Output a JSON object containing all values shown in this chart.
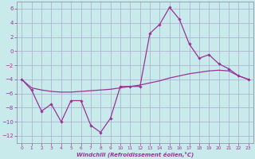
{
  "background_color": "#c8eaea",
  "grid_color": "#aaaacc",
  "line_color": "#993399",
  "x_hours": [
    0,
    1,
    2,
    3,
    4,
    5,
    6,
    7,
    8,
    9,
    10,
    11,
    12,
    13,
    14,
    15,
    16,
    17,
    18,
    19,
    20,
    21,
    22,
    23
  ],
  "y_jagged": [
    -4.0,
    -5.5,
    -8.5,
    -7.5,
    -10.0,
    -7.0,
    -7.0,
    -10.5,
    -11.5,
    -9.5,
    -5.0,
    -5.0,
    -5.0,
    2.5,
    3.8,
    6.2,
    4.5,
    1.0,
    -1.0,
    -0.5,
    -1.8,
    -2.5,
    -3.5,
    -4.0
  ],
  "y_smooth": [
    -4.0,
    -5.2,
    -5.5,
    -5.7,
    -5.8,
    -5.8,
    -5.7,
    -5.6,
    -5.5,
    -5.4,
    -5.2,
    -5.0,
    -4.8,
    -4.5,
    -4.2,
    -3.8,
    -3.5,
    -3.2,
    -3.0,
    -2.8,
    -2.7,
    -2.8,
    -3.5,
    -4.0
  ],
  "ylim": [
    -13,
    7
  ],
  "yticks": [
    -12,
    -10,
    -8,
    -6,
    -4,
    -2,
    0,
    2,
    4,
    6
  ],
  "xticks": [
    0,
    1,
    2,
    3,
    4,
    5,
    6,
    7,
    8,
    9,
    10,
    11,
    12,
    13,
    14,
    15,
    16,
    17,
    18,
    19,
    20,
    21,
    22,
    23
  ],
  "xlabel": "Windchill (Refroidissement éolien,°C)"
}
